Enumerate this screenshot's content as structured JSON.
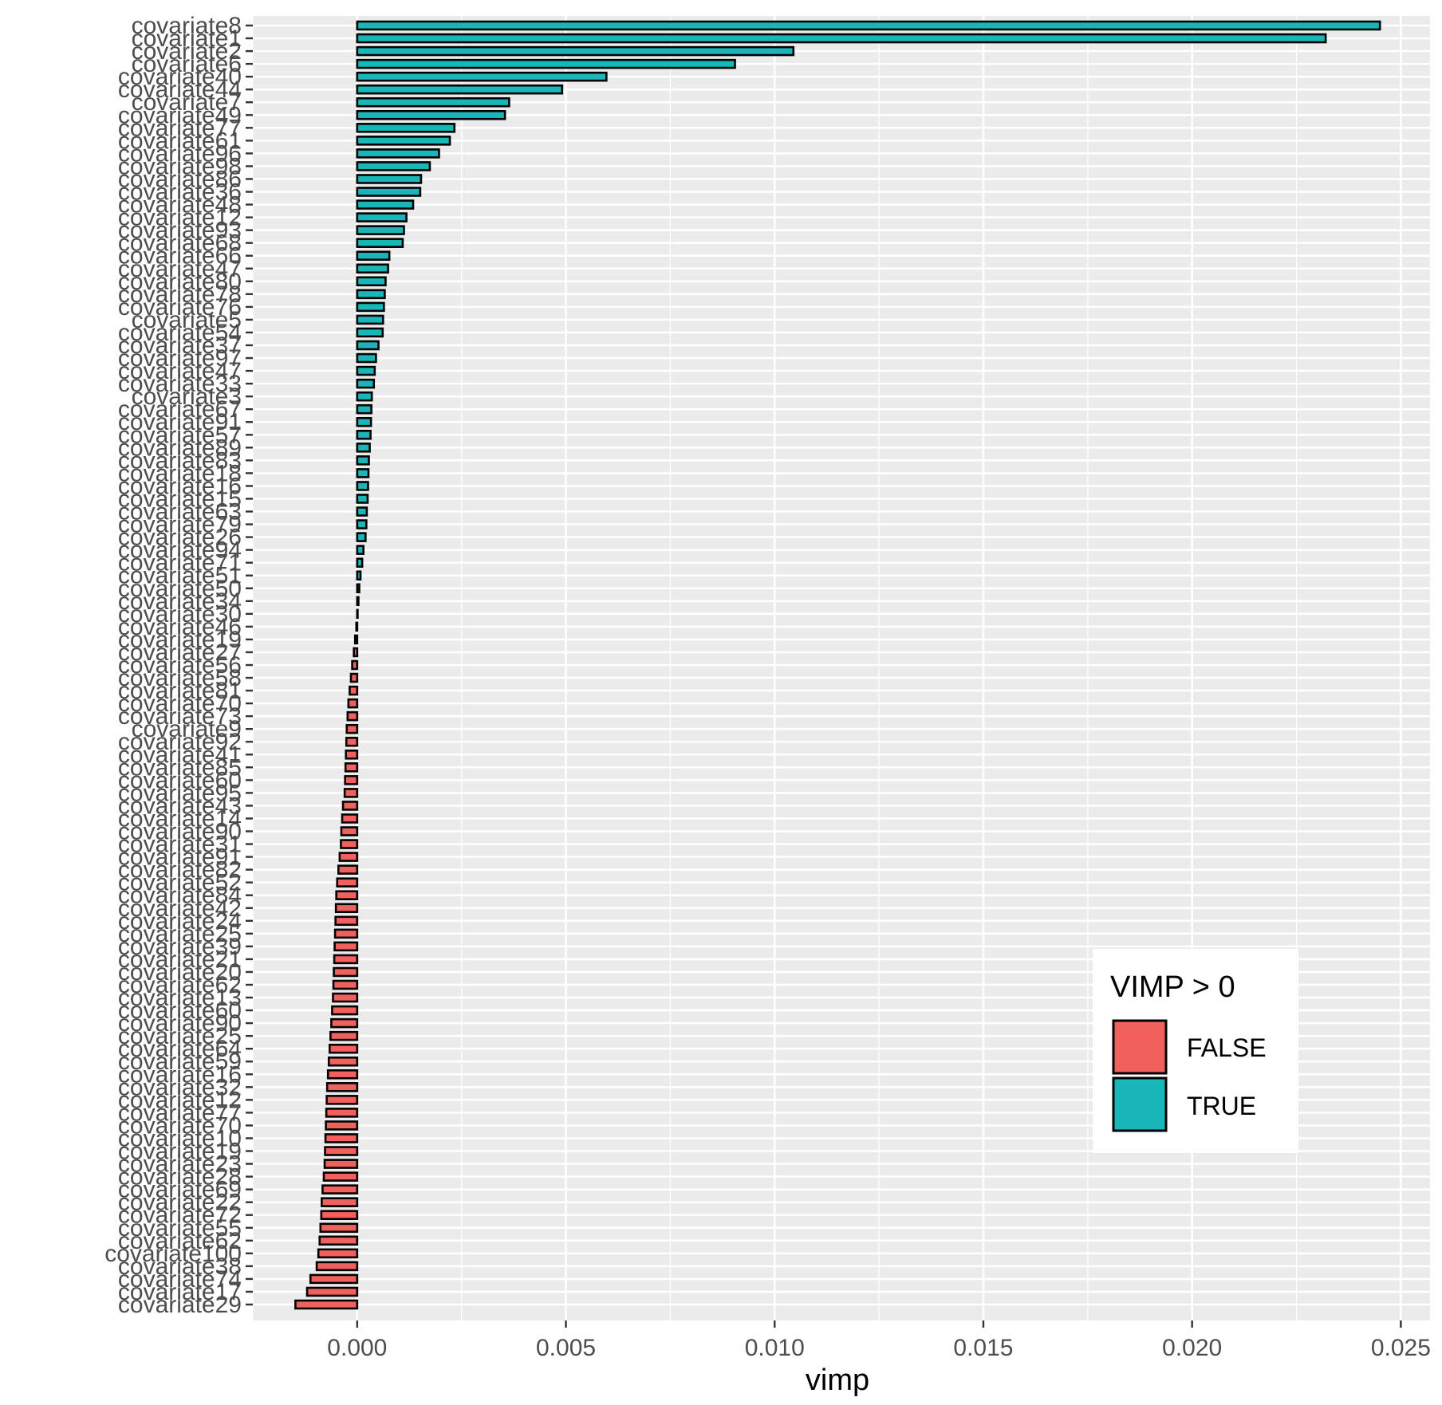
{
  "chart_data": {
    "type": "bar",
    "orientation": "horizontal",
    "xlabel": "vimp",
    "ylabel": "",
    "xlim": [
      -0.0025,
      0.0257
    ],
    "x_ticks": [
      0.0,
      0.005,
      0.01,
      0.015,
      0.02,
      0.025
    ],
    "x_tick_labels": [
      "0.000",
      "0.005",
      "0.010",
      "0.015",
      "0.020",
      "0.025"
    ],
    "grid": true,
    "legend": {
      "title": "VIMP > 0",
      "position": "bottom-right",
      "entries": [
        {
          "label": "FALSE",
          "color": "#f0605c"
        },
        {
          "label": "TRUE",
          "color": "#18b6b8"
        }
      ]
    },
    "colors": {
      "panel": "#ebebeb",
      "grid": "#ffffff",
      "bar_outline": "#000000",
      "false": "#f0605c",
      "true": "#18b6b8"
    },
    "categories": [
      "covariate8",
      "covariate1",
      "covariate2",
      "covariate6",
      "covariate40",
      "covariate44",
      "covariate7",
      "covariate49",
      "covariate77",
      "covariate61",
      "covariate96",
      "covariate98",
      "covariate86",
      "covariate36",
      "covariate48",
      "covariate12",
      "covariate93",
      "covariate68",
      "covariate66",
      "covariate47",
      "covariate80",
      "covariate78",
      "covariate76",
      "covariate5",
      "covariate54",
      "covariate37",
      "covariate97",
      "covariate47",
      "covariate33",
      "covariate3",
      "covariate67",
      "covariate91",
      "covariate57",
      "covariate89",
      "covariate83",
      "covariate18",
      "covariate16",
      "covariate15",
      "covariate63",
      "covariate79",
      "covariate26",
      "covariate94",
      "covariate71",
      "covariate51",
      "covariate50",
      "covariate34",
      "covariate30",
      "covariate46",
      "covariate19",
      "covariate27",
      "covariate56",
      "covariate58",
      "covariate81",
      "covariate70",
      "covariate73",
      "covariate9",
      "covariate92",
      "covariate41",
      "covariate85",
      "covariate60",
      "covariate95",
      "covariate43",
      "covariate14",
      "covariate90",
      "covariate31",
      "covariate91",
      "covariate82",
      "covariate52",
      "covariate84",
      "covariate42",
      "covariate24",
      "covariate25",
      "covariate39",
      "covariate21",
      "covariate20",
      "covariate62",
      "covariate13",
      "covariate60",
      "covariate90",
      "covariate25",
      "covariate64",
      "covariate59",
      "covariate16",
      "covariate32",
      "covariate12",
      "covariate77",
      "covariate70",
      "covariate10",
      "covariate19",
      "covariate23",
      "covariate28",
      "covariate69",
      "covariate22",
      "covariate72",
      "covariate55",
      "covariate62",
      "covariate100",
      "covariate38",
      "covariate74",
      "covariate17",
      "covariate29"
    ],
    "values": [
      0.0245,
      0.0232,
      0.01045,
      0.00905,
      0.00597,
      0.00491,
      0.00364,
      0.00354,
      0.00233,
      0.00222,
      0.00196,
      0.00174,
      0.00153,
      0.00151,
      0.00134,
      0.00118,
      0.00112,
      0.00109,
      0.00077,
      0.00074,
      0.00068,
      0.00066,
      0.00064,
      0.00062,
      0.00061,
      0.00051,
      0.00045,
      0.00042,
      0.0004,
      0.00035,
      0.00034,
      0.00033,
      0.00032,
      0.0003,
      0.00028,
      0.00027,
      0.00026,
      0.00025,
      0.00023,
      0.00022,
      0.0002,
      0.00015,
      0.00012,
      8e-05,
      5e-05,
      3e-05,
      1e-05,
      -2e-05,
      -5e-05,
      -8e-05,
      -0.00012,
      -0.00015,
      -0.00018,
      -0.00021,
      -0.00023,
      -0.00025,
      -0.00026,
      -0.00027,
      -0.00028,
      -0.00029,
      -0.0003,
      -0.00034,
      -0.00036,
      -0.00038,
      -0.00039,
      -0.00042,
      -0.00045,
      -0.00048,
      -0.0005,
      -0.00051,
      -0.00052,
      -0.00053,
      -0.00054,
      -0.00055,
      -0.00056,
      -0.00057,
      -0.00058,
      -0.0006,
      -0.00062,
      -0.00064,
      -0.00066,
      -0.00068,
      -0.0007,
      -0.00072,
      -0.00073,
      -0.00074,
      -0.00075,
      -0.00076,
      -0.00077,
      -0.00078,
      -0.0008,
      -0.00083,
      -0.00085,
      -0.00086,
      -0.00088,
      -0.0009,
      -0.00093,
      -0.00097,
      -0.00112,
      -0.0012,
      -0.00148
    ]
  }
}
